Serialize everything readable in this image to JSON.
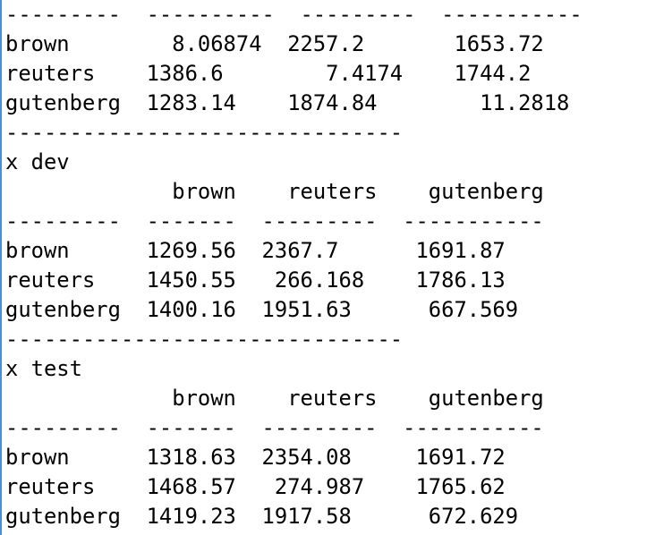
{
  "console": {
    "lines": [
      "---------  ----------  ---------  -----------",
      "brown        8.06874  2257.2       1653.72",
      "reuters    1386.6        7.4174    1744.2",
      "gutenberg  1283.14    1874.84        11.2818",
      "-------------------------------",
      "x dev",
      "             brown    reuters    gutenberg",
      "---------  -------  ---------  -----------",
      "brown      1269.56  2367.7      1691.87",
      "reuters    1450.55   266.168    1786.13",
      "gutenberg  1400.16  1951.63      667.569",
      "-------------------------------",
      "x test",
      "             brown    reuters    gutenberg",
      "---------  -------  ---------  -----------",
      "brown      1318.63  2354.08     1691.72",
      "reuters    1468.57   274.987    1765.62",
      "gutenberg  1419.23  1917.58      672.629"
    ]
  }
}
